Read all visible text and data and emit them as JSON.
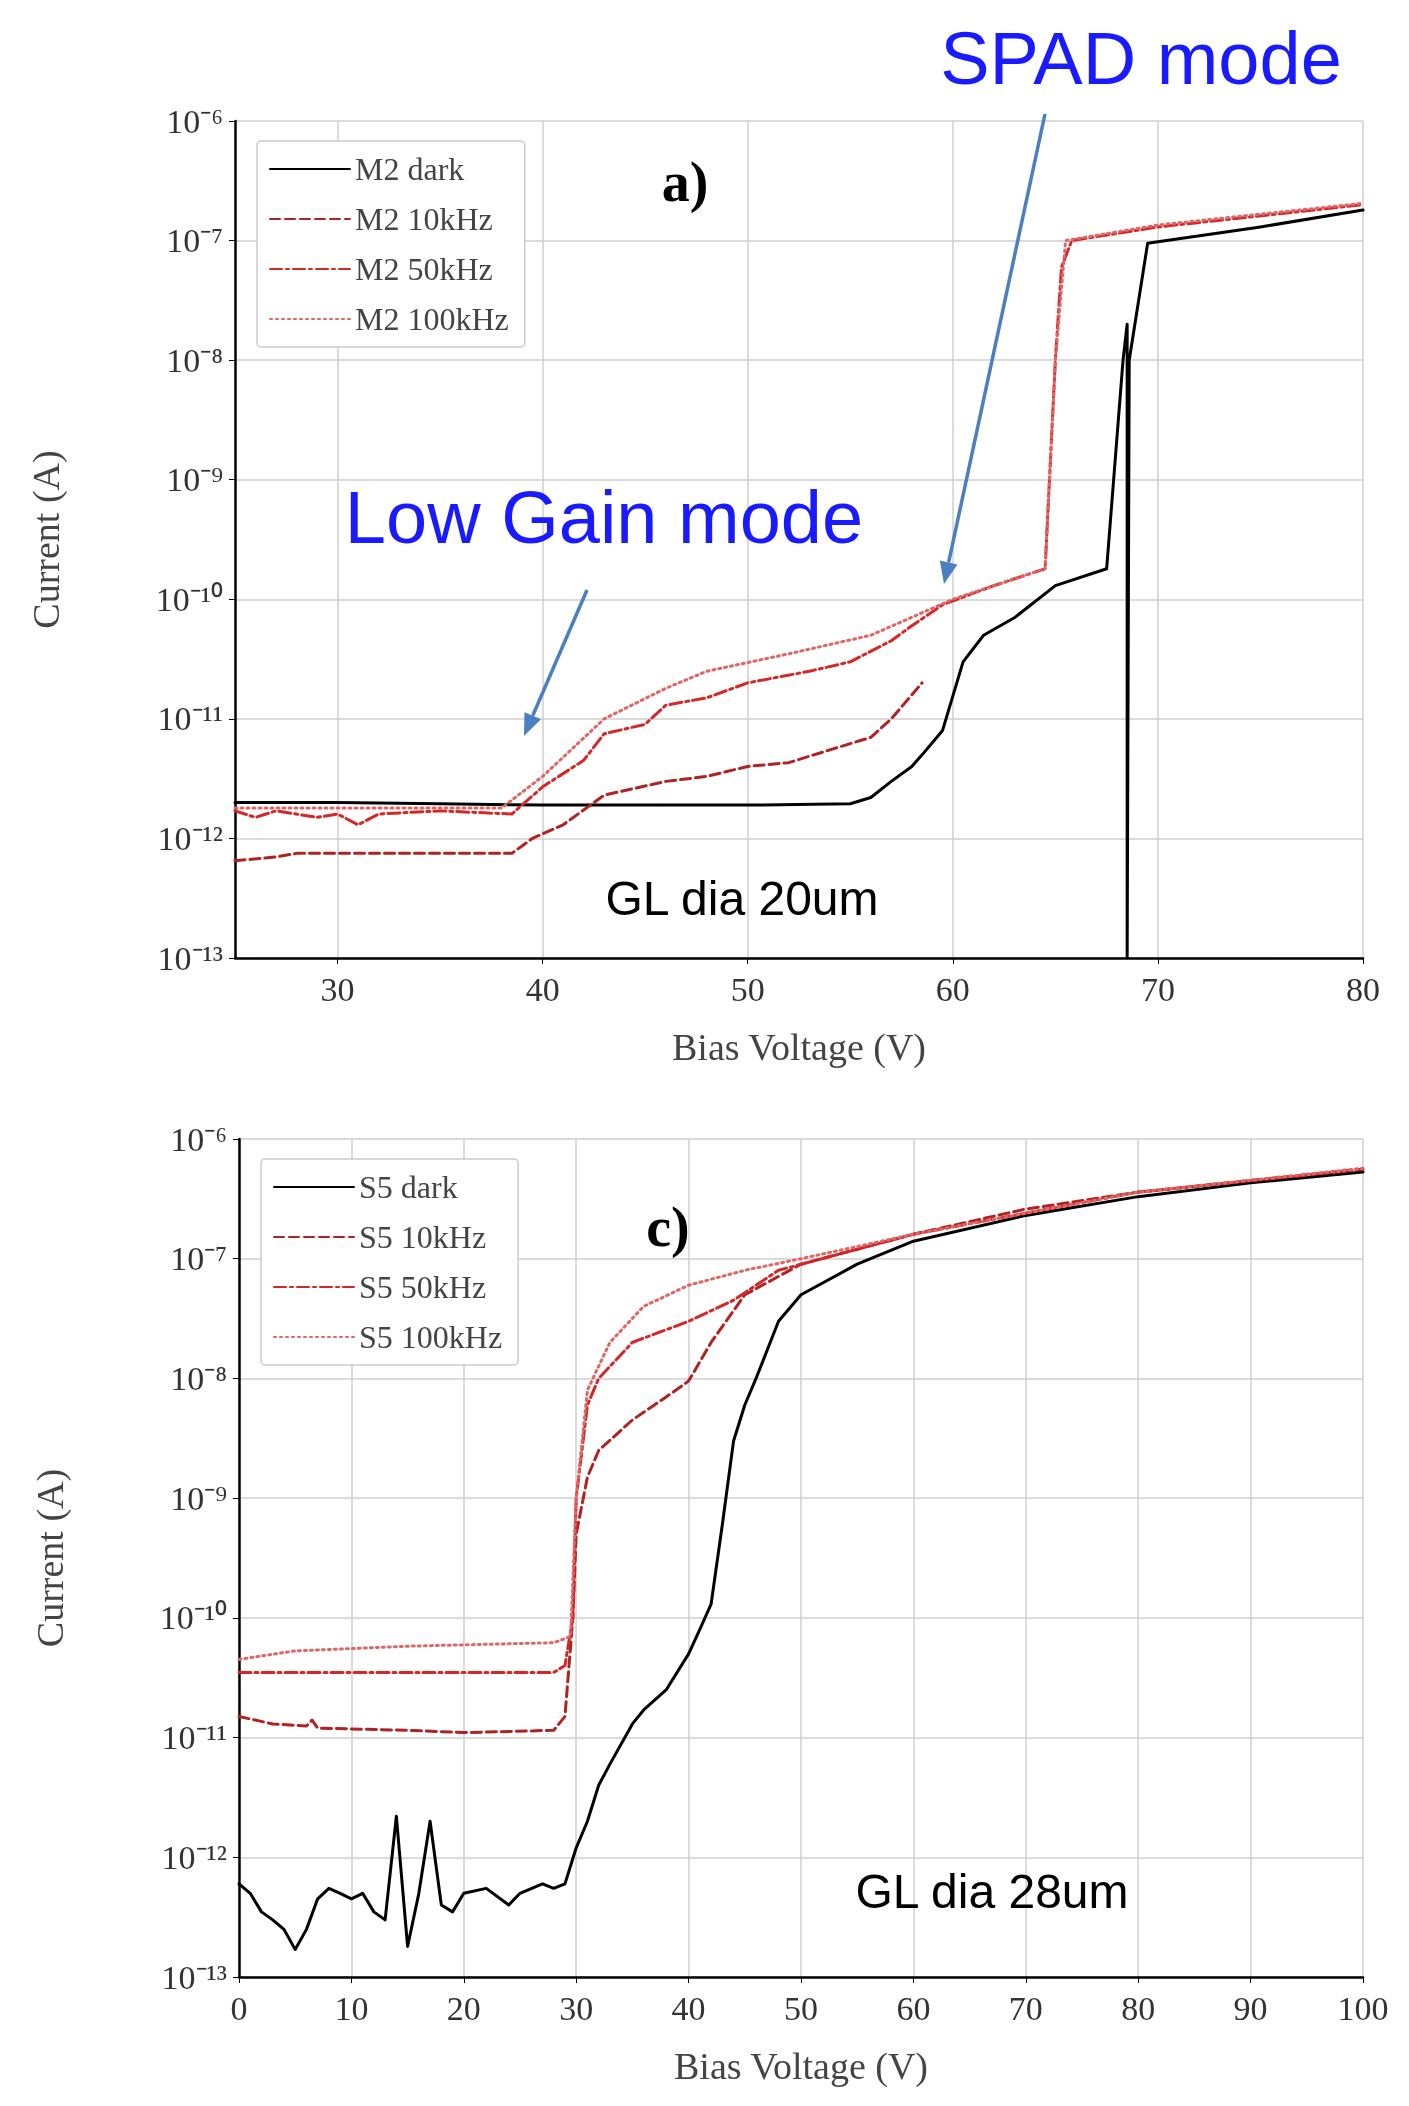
{
  "chart_data": [
    {
      "type": "line",
      "xlabel": "Bias Voltage (V)",
      "ylabel": "Current (A)",
      "log": "y",
      "grid": true,
      "legend": "top left",
      "marker": "none",
      "xlim": [
        25,
        80
      ],
      "xticks": [
        30,
        40,
        50,
        60,
        70,
        80
      ],
      "ylim": [
        1e-13,
        1e-06
      ],
      "yticks": [
        {
          "value": 1e-13,
          "label": "10⁻¹³"
        },
        {
          "value": 1e-12,
          "label": "10⁻¹²"
        },
        {
          "value": 1e-11,
          "label": "10⁻¹¹"
        },
        {
          "value": 1e-10,
          "label": "10⁻¹⁰"
        },
        {
          "value": 1e-09,
          "label": "10⁻⁹"
        },
        {
          "value": 1e-08,
          "label": "10⁻⁸"
        },
        {
          "value": 1e-07,
          "label": "10⁻⁷"
        },
        {
          "value": 1e-06,
          "label": "10⁻⁶"
        }
      ],
      "annotations": [
        "a)",
        "Low Gain mode",
        "SPAD mode",
        "GL dia 20um"
      ],
      "series": [
        {
          "name": "M2 dark",
          "color": "#000000",
          "line_style": "solid",
          "x": [
            25,
            30,
            35,
            40,
            45,
            50,
            55,
            56,
            57,
            58,
            58.5,
            59.5,
            60.5,
            61.5,
            63,
            65,
            67.5,
            68.3,
            68.5,
            68.5,
            68.6,
            69.5,
            75,
            80
          ],
          "values": [
            2e-12,
            2e-12,
            1.95e-12,
            1.9e-12,
            1.9e-12,
            1.9e-12,
            1.95e-12,
            2.2e-12,
            3e-12,
            4e-12,
            5e-12,
            8e-12,
            3e-11,
            5e-11,
            7e-11,
            1.3e-10,
            1.8e-10,
            1e-08,
            2e-08,
            1e-13,
            1e-08,
            9.5e-08,
            1.3e-07,
            1.8e-07
          ]
        },
        {
          "name": "M2 10kHz",
          "color": "#b22222",
          "line_style": "dashed",
          "x": [
            25,
            27,
            28,
            35,
            38.5,
            39.5,
            41,
            43,
            46,
            48,
            50,
            52,
            54,
            56,
            57,
            58.5
          ],
          "values": [
            6.5e-13,
            7e-13,
            7.5e-13,
            7.5e-13,
            7.5e-13,
            1e-12,
            1.3e-12,
            2.3e-12,
            3e-12,
            3.3e-12,
            4e-12,
            4.3e-12,
            5.5e-12,
            7e-12,
            1e-11,
            2e-11
          ]
        },
        {
          "name": "M2 50kHz",
          "color": "#d62728",
          "line_style": "dashdot",
          "x": [
            25,
            26,
            27,
            29,
            30,
            31,
            32,
            35,
            38.5,
            40,
            42,
            43,
            45,
            46,
            48,
            50,
            53,
            55,
            57,
            58,
            59.5,
            62,
            64.5,
            65,
            65.3,
            65.8,
            70,
            80
          ],
          "values": [
            1.7e-12,
            1.5e-12,
            1.7e-12,
            1.5e-12,
            1.6e-12,
            1.3e-12,
            1.6e-12,
            1.7e-12,
            1.6e-12,
            2.7e-12,
            4.5e-12,
            7.5e-12,
            9e-12,
            1.3e-11,
            1.5e-11,
            2e-11,
            2.5e-11,
            3e-11,
            4.5e-11,
            6e-11,
            9e-11,
            1.3e-10,
            1.8e-10,
            1e-08,
            6e-08,
            1e-07,
            1.3e-07,
            2e-07
          ]
        },
        {
          "name": "M2 100kHz",
          "color": "#e06666",
          "line_style": "dotted",
          "x": [
            25,
            38,
            40,
            43,
            46,
            48,
            52,
            56,
            60,
            64.5,
            65,
            65.5,
            70,
            80
          ],
          "values": [
            1.8e-12,
            1.8e-12,
            3.3e-12,
            1e-11,
            1.8e-11,
            2.5e-11,
            3.5e-11,
            5e-11,
            1e-10,
            1.8e-10,
            1e-08,
            1e-07,
            1.35e-07,
            2.05e-07
          ]
        }
      ]
    },
    {
      "type": "line",
      "xlabel": "Bias Voltage (V)",
      "ylabel": "Current (A)",
      "log": "y",
      "grid": true,
      "legend": "top left",
      "marker": "none",
      "xlim": [
        0,
        100
      ],
      "xticks": [
        0,
        10,
        20,
        30,
        40,
        50,
        60,
        70,
        80,
        90,
        100
      ],
      "ylim": [
        1e-13,
        1e-06
      ],
      "yticks": [
        {
          "value": 1e-13,
          "label": "10⁻¹³"
        },
        {
          "value": 1e-12,
          "label": "10⁻¹²"
        },
        {
          "value": 1e-11,
          "label": "10⁻¹¹"
        },
        {
          "value": 1e-10,
          "label": "10⁻¹⁰"
        },
        {
          "value": 1e-09,
          "label": "10⁻⁹"
        },
        {
          "value": 1e-08,
          "label": "10⁻⁸"
        },
        {
          "value": 1e-07,
          "label": "10⁻⁷"
        },
        {
          "value": 1e-06,
          "label": "10⁻⁶"
        }
      ],
      "annotations": [
        "c)",
        "GL dia 28um"
      ],
      "series": [
        {
          "name": "S5 dark",
          "color": "#000000",
          "line_style": "solid",
          "x": [
            0,
            1,
            2,
            3,
            4,
            5,
            6,
            7,
            8,
            9,
            10,
            11,
            12,
            13,
            14,
            15,
            16,
            17,
            18,
            19,
            20,
            22,
            24,
            25,
            27,
            28,
            29,
            30,
            31,
            32,
            33,
            35,
            36,
            38,
            40,
            41,
            42,
            43,
            44,
            45,
            46,
            48,
            50,
            55,
            60,
            70,
            80,
            90,
            100
          ],
          "values": [
            6e-13,
            5e-13,
            3.5e-13,
            3e-13,
            2.5e-13,
            1.7e-13,
            2.5e-13,
            4.5e-13,
            5.5e-13,
            5e-13,
            4.5e-13,
            5e-13,
            3.5e-13,
            3e-13,
            2.2e-12,
            1.8e-13,
            5e-13,
            2e-12,
            4e-13,
            3.5e-13,
            5e-13,
            5.5e-13,
            4e-13,
            5e-13,
            6e-13,
            5.5e-13,
            6e-13,
            1.2e-12,
            2e-12,
            4e-12,
            6e-12,
            1.3e-11,
            1.7e-11,
            2.5e-11,
            5e-11,
            8e-11,
            1.3e-10,
            6e-10,
            3e-09,
            6e-09,
            1e-08,
            3e-08,
            5e-08,
            9e-08,
            1.4e-07,
            2.3e-07,
            3.3e-07,
            4.3e-07,
            5.3e-07
          ]
        },
        {
          "name": "S5 10kHz",
          "color": "#b22222",
          "line_style": "dashed",
          "x": [
            0,
            3,
            6,
            6.5,
            7,
            15,
            20,
            28,
            29,
            29.7,
            30,
            31,
            32,
            35,
            38,
            40,
            42,
            45,
            50,
            60,
            70,
            80,
            100
          ],
          "values": [
            1.5e-11,
            1.3e-11,
            1.25e-11,
            1.4e-11,
            1.2e-11,
            1.15e-11,
            1.1e-11,
            1.15e-11,
            1.5e-11,
            1e-10,
            5e-10,
            1.5e-09,
            2.5e-09,
            4.5e-09,
            7e-09,
            9.5e-09,
            2e-08,
            5e-08,
            9e-08,
            1.6e-07,
            2.6e-07,
            3.6e-07,
            5.6e-07
          ]
        },
        {
          "name": "S5 50kHz",
          "color": "#d62728",
          "line_style": "dashdot",
          "x": [
            0,
            10,
            20,
            28,
            29,
            29.7,
            30,
            31,
            32,
            35,
            40,
            44,
            48,
            55,
            60,
            80,
            100
          ],
          "values": [
            3.5e-11,
            3.5e-11,
            3.5e-11,
            3.5e-11,
            4e-11,
            1e-10,
            1e-09,
            6e-09,
            1e-08,
            2e-08,
            3e-08,
            4.5e-08,
            8e-08,
            1.2e-07,
            1.6e-07,
            3.6e-07,
            5.6e-07
          ]
        },
        {
          "name": "S5 100kHz",
          "color": "#e06666",
          "line_style": "dotted",
          "x": [
            0,
            5,
            15,
            28,
            29.5,
            30,
            31,
            33,
            36,
            40,
            45,
            50,
            60,
            80,
            100
          ],
          "values": [
            4.5e-11,
            5.3e-11,
            5.8e-11,
            6.2e-11,
            7e-11,
            1e-09,
            8e-09,
            2e-08,
            4e-08,
            6e-08,
            8e-08,
            1e-07,
            1.6e-07,
            3.6e-07,
            5.7e-07
          ]
        }
      ]
    }
  ]
}
